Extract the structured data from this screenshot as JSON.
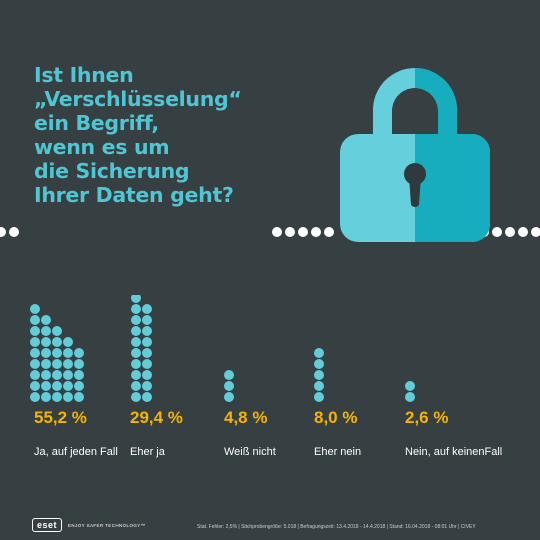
{
  "headline": {
    "lines": [
      "Ist Ihnen",
      "„Verschlüsselung“",
      "ein Begriff,",
      "wenn es um",
      "die Sicherung",
      "Ihrer Daten geht?"
    ]
  },
  "chart_data": {
    "type": "bar",
    "categories": [
      "Ja, auf jeden Fall",
      "Eher ja",
      "Weiß nicht",
      "Eher nein",
      "Nein, auf keinenFall"
    ],
    "values": [
      55.2,
      29.4,
      4.8,
      8.0,
      2.6
    ],
    "value_labels": [
      "55,2 %",
      "29,4 %",
      "4,8 %",
      "8,0 %",
      "2,6 %"
    ],
    "unit": "%",
    "marker": "dot pictogram"
  },
  "footer": {
    "brand": "eset",
    "tagline": "ENJOY SAFER TECHNOLOGY™",
    "note": "Stat. Fehler: 2,5% | Stichprobengröße: 5.018 | Befragungszeit: 13.4.2018 - 14.4.2018 | Stand: 16.04.2018 - 08:01 Uhr | CIVEY"
  },
  "colors": {
    "background": "#363f42",
    "headline": "#4fc6d3",
    "dots": "#62cdd8",
    "percent": "#f4b400",
    "lock_light": "#65d0db",
    "lock_dark": "#16aebf",
    "keyhole": "#2e3a3d"
  },
  "icons": [
    "padlock-icon",
    "eset-logo"
  ]
}
